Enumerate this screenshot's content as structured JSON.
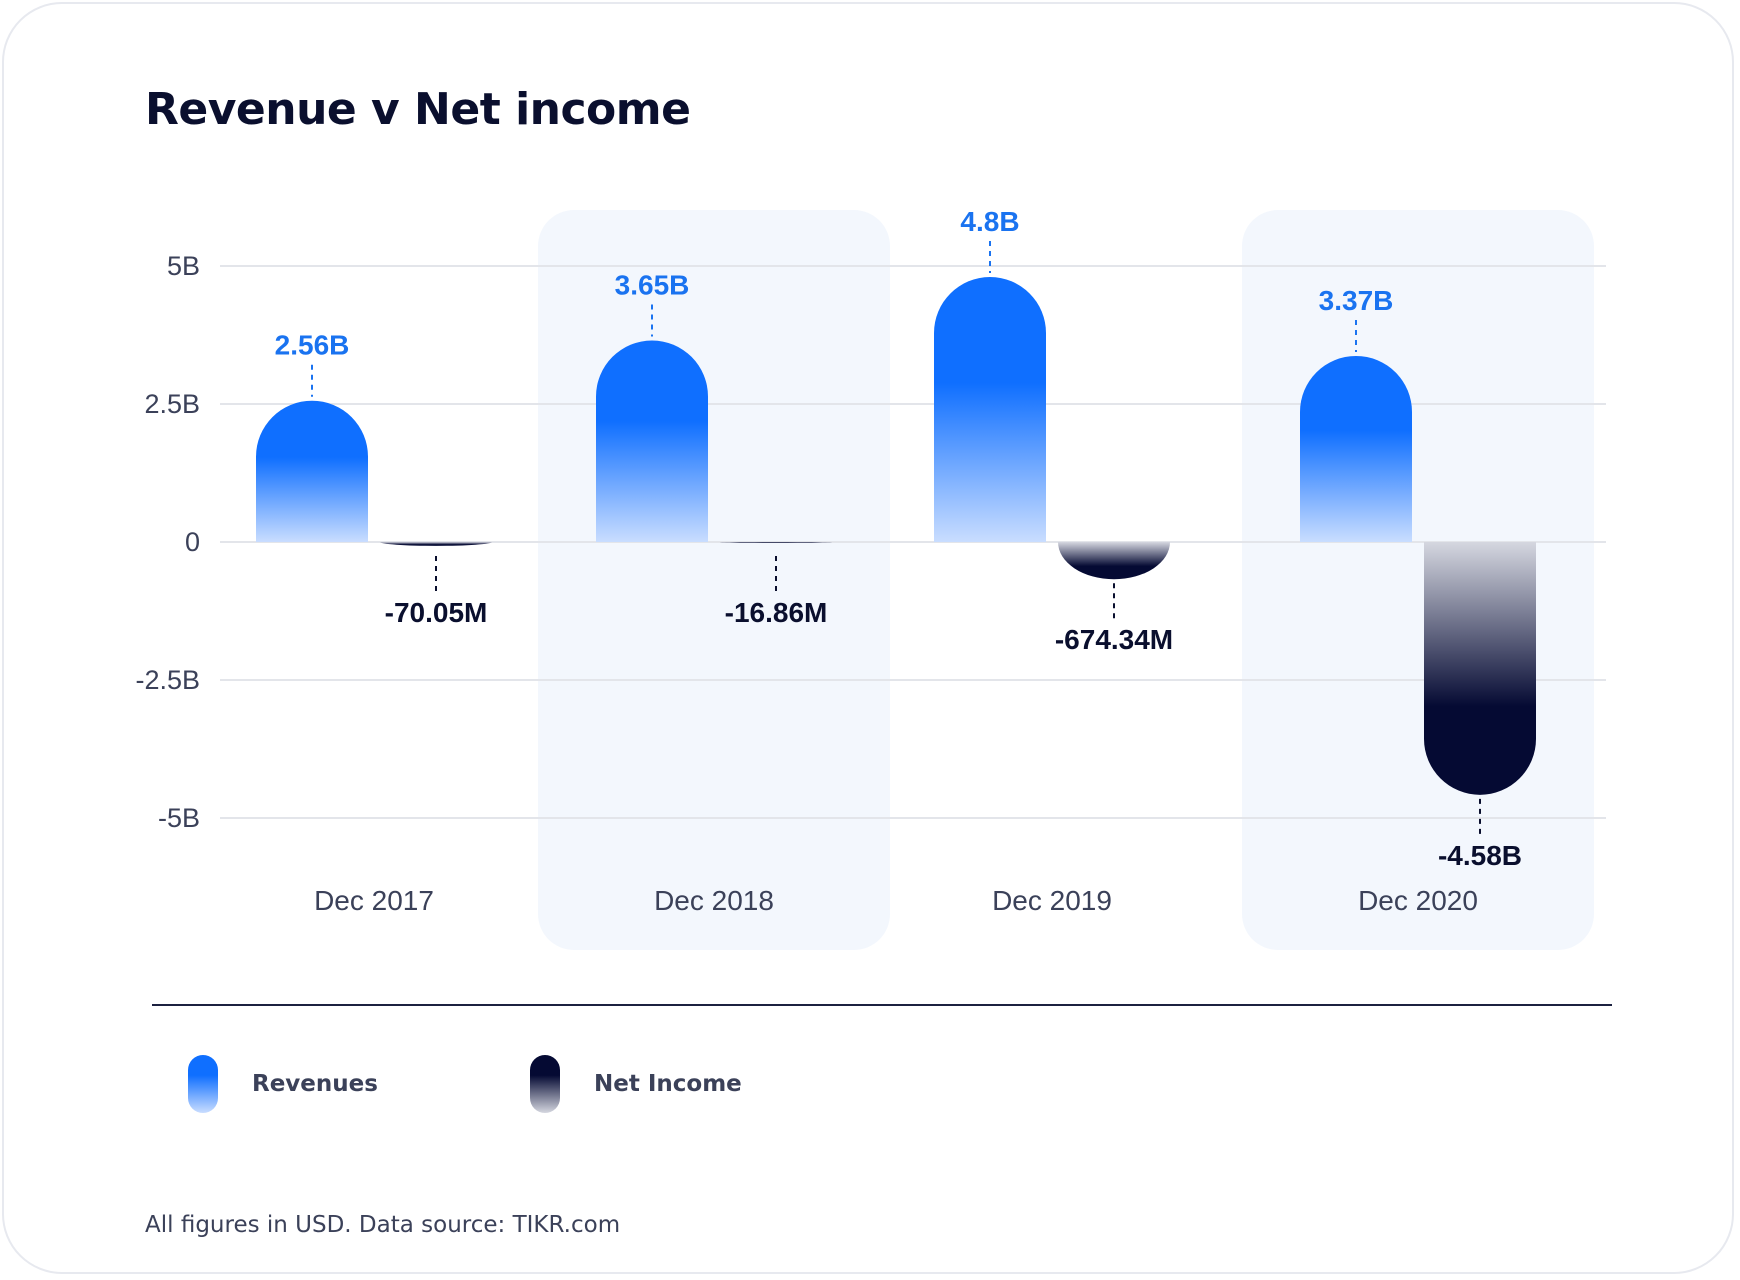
{
  "chart_data": {
    "type": "bar",
    "title": "Revenue v Net income",
    "categories": [
      "Dec 2017",
      "Dec 2018",
      "Dec 2019",
      "Dec 2020"
    ],
    "series": [
      {
        "name": "Revenues",
        "values": [
          2.56,
          3.65,
          4.8,
          3.37
        ],
        "labels": [
          "2.56B",
          "3.65B",
          "4.8B",
          "3.37B"
        ],
        "color": "#0f6fff",
        "color_light": "#c9ddff"
      },
      {
        "name": "Net Income",
        "values": [
          -0.07005,
          -0.01686,
          -0.67434,
          -4.58
        ],
        "labels": [
          "-70.05M",
          "-16.86M",
          "-674.34M",
          "-4.58B"
        ],
        "color": "#050a33",
        "color_light": "#d5d7e0"
      }
    ],
    "y_ticks": [
      5,
      2.5,
      0,
      -2.5,
      -5
    ],
    "y_tick_labels": [
      "5B",
      "2.5B",
      "0",
      "-2.5B",
      "-5B"
    ],
    "ylim": [
      -5,
      5
    ],
    "grid": true,
    "legend": "bottom-left",
    "highlighted_categories": [
      1,
      3
    ],
    "highlight_color": "#f3f7fd",
    "label_color_revenue": "#1a73f0",
    "label_color_income": "#0a0f2e"
  },
  "footnote": "All figures in USD. Data source: TIKR.com"
}
